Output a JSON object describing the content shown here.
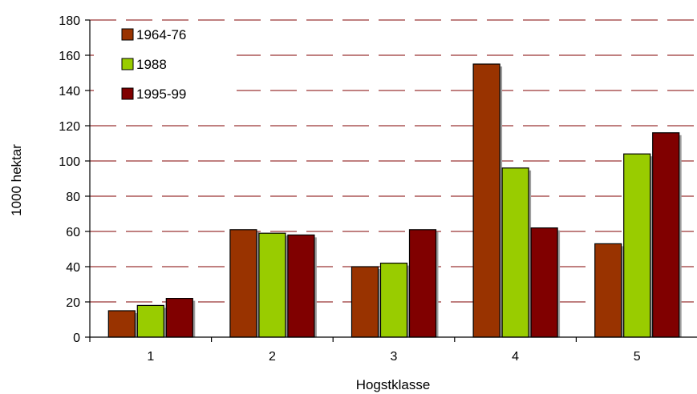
{
  "chart_data": {
    "type": "bar",
    "title": "",
    "xlabel": "Hogstklasse",
    "ylabel": "1000 hektar",
    "ylim": [
      0,
      180
    ],
    "ytick_step": 20,
    "categories": [
      "1",
      "2",
      "3",
      "4",
      "5"
    ],
    "series": [
      {
        "name": "1964-76",
        "color": "#993300",
        "values": [
          15,
          61,
          40,
          155,
          53
        ]
      },
      {
        "name": "1988",
        "color": "#99cc00",
        "values": [
          18,
          59,
          42,
          96,
          104
        ]
      },
      {
        "name": "1995-99",
        "color": "#800000",
        "values": [
          22,
          58,
          61,
          62,
          116
        ]
      }
    ],
    "grid": {
      "show": true,
      "style": "dashed",
      "color": "#800000"
    },
    "legend_position": "top-left"
  }
}
